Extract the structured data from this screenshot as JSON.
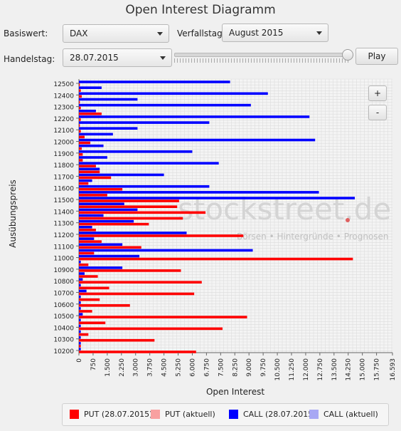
{
  "title": "Open Interest Diagramm",
  "controls": {
    "basiswert_label": "Basiswert:",
    "basiswert_value": "DAX",
    "verfallstag_label": "Verfallstag:",
    "verfallstag_value": "August 2015",
    "handelstag_label": "Handelstag:",
    "handelstag_value": "28.07.2015",
    "slider_value": 1.0,
    "play_label": "Play",
    "zoom_in_label": "+",
    "zoom_out_label": "-"
  },
  "watermark": {
    "text": "stockstreet.de",
    "tagline": "Börsen • Hintergründe • Prognosen"
  },
  "legend": [
    {
      "label": "PUT (28.07.2015)",
      "color": "#ff0000"
    },
    {
      "label": "PUT (aktuell)",
      "color": "#f8a0a0"
    },
    {
      "label": "CALL (28.07.2015)",
      "color": "#0000ff"
    },
    {
      "label": "CALL (aktuell)",
      "color": "#a8a8f4"
    }
  ],
  "chart_data": {
    "type": "bar",
    "orientation": "horizontal",
    "xlabel": "Open Interest",
    "ylabel": "Ausübungspreis",
    "xlim": [
      0,
      16593
    ],
    "x_ticks": [
      "0",
      "750",
      "1.500",
      "2.250",
      "3.000",
      "3.750",
      "4.500",
      "5.250",
      "6.000",
      "6.750",
      "7.500",
      "8.250",
      "9.000",
      "9.750",
      "10.500",
      "11.250",
      "12.000",
      "12.750",
      "13.500",
      "14.250",
      "15.000",
      "15.750",
      "16.593"
    ],
    "x_tick_values": [
      0,
      750,
      1500,
      2250,
      3000,
      3750,
      4500,
      5250,
      6000,
      6750,
      7500,
      8250,
      9000,
      9750,
      10500,
      11250,
      12000,
      12750,
      13500,
      14250,
      15000,
      15750,
      16593
    ],
    "y_ticks": [
      "12500",
      "12400",
      "12300",
      "12200",
      "12100",
      "12000",
      "11900",
      "11800",
      "11700",
      "11600",
      "11500",
      "11400",
      "11300",
      "11200",
      "11100",
      "11000",
      "10900",
      "10800",
      "10700",
      "10600",
      "10500",
      "10400",
      "10300",
      "10200"
    ],
    "strike_range": [
      10200,
      12500
    ],
    "strike_step": 50,
    "grid": true,
    "colors": {
      "put": "#ff0000",
      "call": "#0000ff"
    },
    "series": [
      {
        "name": "PUT (28.07.2015)",
        "points": [
          [
            12500,
            50
          ],
          [
            12450,
            100
          ],
          [
            12400,
            150
          ],
          [
            12350,
            50
          ],
          [
            12300,
            100
          ],
          [
            12250,
            1200
          ],
          [
            12200,
            100
          ],
          [
            12150,
            50
          ],
          [
            12100,
            100
          ],
          [
            12050,
            300
          ],
          [
            12000,
            600
          ],
          [
            11950,
            150
          ],
          [
            11900,
            200
          ],
          [
            11850,
            200
          ],
          [
            11800,
            900
          ],
          [
            11750,
            1100
          ],
          [
            11700,
            1700
          ],
          [
            11650,
            500
          ],
          [
            11600,
            2300
          ],
          [
            11550,
            1500
          ],
          [
            11500,
            5300
          ],
          [
            11450,
            5200
          ],
          [
            11400,
            6700
          ],
          [
            11350,
            5500
          ],
          [
            11300,
            3700
          ],
          [
            11250,
            900
          ],
          [
            11200,
            8700
          ],
          [
            11150,
            1200
          ],
          [
            11100,
            3300
          ],
          [
            11050,
            800
          ],
          [
            11000,
            14500
          ],
          [
            10950,
            500
          ],
          [
            10900,
            5400
          ],
          [
            10850,
            1000
          ],
          [
            10800,
            6500
          ],
          [
            10750,
            1600
          ],
          [
            10700,
            6100
          ],
          [
            10650,
            1100
          ],
          [
            10600,
            2700
          ],
          [
            10550,
            700
          ],
          [
            10500,
            8900
          ],
          [
            10450,
            1400
          ],
          [
            10400,
            7600
          ],
          [
            10350,
            500
          ],
          [
            10300,
            4000
          ],
          [
            10250,
            100
          ],
          [
            10200,
            6200
          ]
        ]
      },
      {
        "name": "CALL (28.07.2015)",
        "points": [
          [
            12500,
            8000
          ],
          [
            12450,
            1200
          ],
          [
            12400,
            10000
          ],
          [
            12350,
            3100
          ],
          [
            12300,
            9100
          ],
          [
            12250,
            900
          ],
          [
            12200,
            12200
          ],
          [
            12150,
            6900
          ],
          [
            12100,
            3100
          ],
          [
            12050,
            1800
          ],
          [
            12000,
            12500
          ],
          [
            11950,
            1300
          ],
          [
            11900,
            6000
          ],
          [
            11850,
            1500
          ],
          [
            11800,
            7400
          ],
          [
            11750,
            1100
          ],
          [
            11700,
            4500
          ],
          [
            11650,
            700
          ],
          [
            11600,
            6900
          ],
          [
            11550,
            12700
          ],
          [
            11500,
            14600
          ],
          [
            11450,
            2400
          ],
          [
            11400,
            3100
          ],
          [
            11350,
            1300
          ],
          [
            11300,
            2900
          ],
          [
            11250,
            700
          ],
          [
            11200,
            5700
          ],
          [
            11150,
            800
          ],
          [
            11100,
            2300
          ],
          [
            11050,
            9200
          ],
          [
            11000,
            3200
          ],
          [
            10950,
            100
          ],
          [
            10900,
            2300
          ],
          [
            10850,
            300
          ],
          [
            10800,
            200
          ],
          [
            10750,
            100
          ],
          [
            10700,
            400
          ],
          [
            10650,
            100
          ],
          [
            10600,
            100
          ],
          [
            10550,
            100
          ],
          [
            10500,
            200
          ],
          [
            10450,
            100
          ],
          [
            10400,
            100
          ],
          [
            10350,
            100
          ],
          [
            10300,
            100
          ],
          [
            10250,
            100
          ],
          [
            10200,
            100
          ]
        ]
      }
    ]
  }
}
